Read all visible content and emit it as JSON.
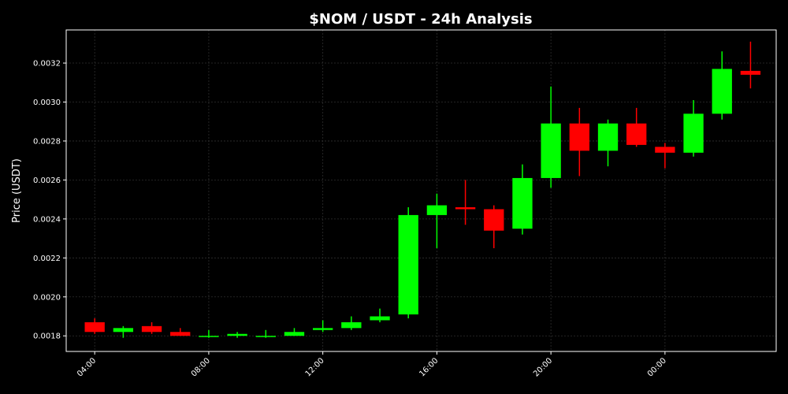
{
  "chart_data": {
    "type": "candlestick",
    "title": "$NOM / USDT - 24h Analysis",
    "xlabel": "",
    "ylabel": "Price (USDT)",
    "ylim": [
      0.00172,
      0.00337
    ],
    "grid": true,
    "up_color": "#00ff00",
    "down_color": "#ff0000",
    "background": "#000000",
    "y_ticks": [
      "0.0018",
      "0.0020",
      "0.0022",
      "0.0024",
      "0.0026",
      "0.0028",
      "0.0030",
      "0.0032"
    ],
    "x_ticks": [
      {
        "hour": 4,
        "label": "04:00"
      },
      {
        "hour": 8,
        "label": "08:00"
      },
      {
        "hour": 12,
        "label": "12:00"
      },
      {
        "hour": 16,
        "label": "16:00"
      },
      {
        "hour": 20,
        "label": "20:00"
      },
      {
        "hour": 24,
        "label": "00:00"
      }
    ],
    "x_range": [
      3,
      27.9
    ],
    "candles": [
      {
        "hour": 4,
        "open": 0.00187,
        "high": 0.00189,
        "low": 0.00181,
        "close": 0.00182
      },
      {
        "hour": 5,
        "open": 0.00182,
        "high": 0.00185,
        "low": 0.00179,
        "close": 0.00184
      },
      {
        "hour": 6,
        "open": 0.00185,
        "high": 0.00187,
        "low": 0.00181,
        "close": 0.00182
      },
      {
        "hour": 7,
        "open": 0.00182,
        "high": 0.00184,
        "low": 0.0018,
        "close": 0.0018
      },
      {
        "hour": 8,
        "open": 0.0018,
        "high": 0.00183,
        "low": 0.00179,
        "close": 0.0018
      },
      {
        "hour": 9,
        "open": 0.0018,
        "high": 0.00182,
        "low": 0.00179,
        "close": 0.00181
      },
      {
        "hour": 10,
        "open": 0.0018,
        "high": 0.00183,
        "low": 0.00179,
        "close": 0.0018
      },
      {
        "hour": 11,
        "open": 0.0018,
        "high": 0.00184,
        "low": 0.0018,
        "close": 0.00182
      },
      {
        "hour": 12,
        "open": 0.00183,
        "high": 0.00188,
        "low": 0.00182,
        "close": 0.00184
      },
      {
        "hour": 13,
        "open": 0.00184,
        "high": 0.0019,
        "low": 0.00183,
        "close": 0.00187
      },
      {
        "hour": 14,
        "open": 0.00188,
        "high": 0.00194,
        "low": 0.00187,
        "close": 0.0019
      },
      {
        "hour": 15,
        "open": 0.00191,
        "high": 0.00246,
        "low": 0.00189,
        "close": 0.00242
      },
      {
        "hour": 16,
        "open": 0.00242,
        "high": 0.00253,
        "low": 0.00225,
        "close": 0.00247
      },
      {
        "hour": 17,
        "open": 0.00246,
        "high": 0.0026,
        "low": 0.00237,
        "close": 0.00245
      },
      {
        "hour": 18,
        "open": 0.00245,
        "high": 0.00247,
        "low": 0.00225,
        "close": 0.00234
      },
      {
        "hour": 19,
        "open": 0.00235,
        "high": 0.00268,
        "low": 0.00232,
        "close": 0.00261
      },
      {
        "hour": 20,
        "open": 0.00261,
        "high": 0.00308,
        "low": 0.00256,
        "close": 0.00289
      },
      {
        "hour": 21,
        "open": 0.00289,
        "high": 0.00297,
        "low": 0.00262,
        "close": 0.00275
      },
      {
        "hour": 22,
        "open": 0.00275,
        "high": 0.00291,
        "low": 0.00267,
        "close": 0.00289
      },
      {
        "hour": 23,
        "open": 0.00289,
        "high": 0.00297,
        "low": 0.00277,
        "close": 0.00278
      },
      {
        "hour": 24,
        "open": 0.00277,
        "high": 0.00279,
        "low": 0.00266,
        "close": 0.00274
      },
      {
        "hour": 25,
        "open": 0.00274,
        "high": 0.00301,
        "low": 0.00272,
        "close": 0.00294
      },
      {
        "hour": 26,
        "open": 0.00294,
        "high": 0.00326,
        "low": 0.00291,
        "close": 0.00317
      },
      {
        "hour": 27,
        "open": 0.00316,
        "high": 0.00331,
        "low": 0.00307,
        "close": 0.00314
      }
    ]
  }
}
